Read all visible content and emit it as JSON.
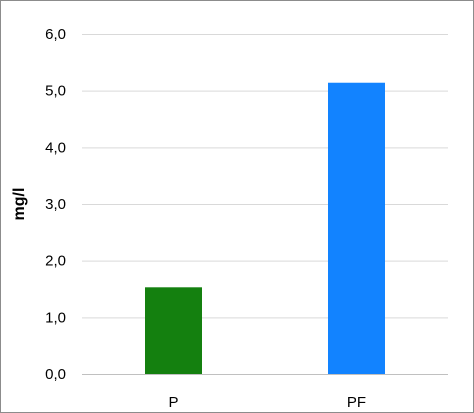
{
  "chart_data": {
    "type": "bar",
    "title": "",
    "xlabel": "",
    "ylabel": "mg/l",
    "categories": [
      "P",
      "PF"
    ],
    "values": [
      1.53,
      5.14
    ],
    "colors": [
      "#14800f",
      "#1283ff"
    ],
    "ylim": [
      0,
      6
    ],
    "yticks": [
      0,
      1,
      2,
      3,
      4,
      5,
      6
    ],
    "ytick_labels": [
      "0,0",
      "1,0",
      "2,0",
      "3,0",
      "4,0",
      "5,0",
      "6,0"
    ],
    "grid": true,
    "legend": "none"
  }
}
